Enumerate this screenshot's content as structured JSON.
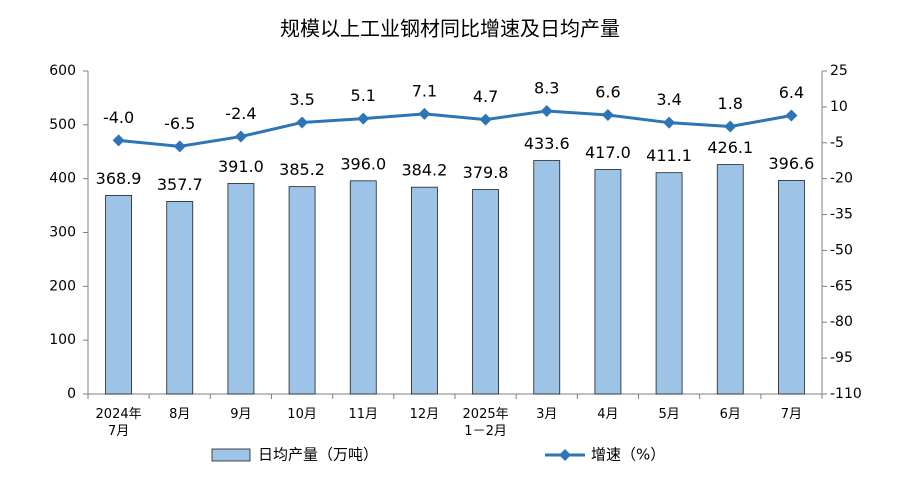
{
  "chart_data": {
    "type": "bar-line",
    "title": "规模以上工业钢材同比增速及日均产量",
    "categories": [
      "2024年\n7月",
      "8月",
      "9月",
      "10月",
      "11月",
      "12月",
      "2025年\n1－2月",
      "3月",
      "4月",
      "5月",
      "6月",
      "7月"
    ],
    "series": [
      {
        "name": "日均产量（万吨）",
        "type": "bar",
        "color": "#9dc3e6",
        "values": [
          368.9,
          357.7,
          391.0,
          385.2,
          396.0,
          384.2,
          379.8,
          433.6,
          417.0,
          411.1,
          426.1,
          396.6
        ],
        "value_labels": [
          "368.9",
          "357.7",
          "391.0",
          "385.2",
          "396.0",
          "384.2",
          "379.8",
          "433.6",
          "417.0",
          "411.1",
          "426.1",
          "396.6"
        ]
      },
      {
        "name": "增速（%）",
        "type": "line",
        "axis": "y2",
        "color": "#2e75b6",
        "values": [
          -4.0,
          -6.5,
          -2.4,
          3.5,
          5.1,
          7.1,
          4.7,
          8.3,
          6.6,
          3.4,
          1.8,
          6.4
        ],
        "value_labels": [
          "-4.0",
          "-6.5",
          "-2.4",
          "3.5",
          "5.1",
          "7.1",
          "4.7",
          "8.3",
          "6.6",
          "3.4",
          "1.8",
          "6.4"
        ]
      }
    ],
    "ylim": [
      0,
      600
    ],
    "yticks": [
      0,
      100,
      200,
      300,
      400,
      500,
      600
    ],
    "y2lim": [
      -110,
      25
    ],
    "y2ticks": [
      -110,
      -95,
      -80,
      -65,
      -50,
      -35,
      -20,
      -5,
      10,
      25
    ]
  }
}
